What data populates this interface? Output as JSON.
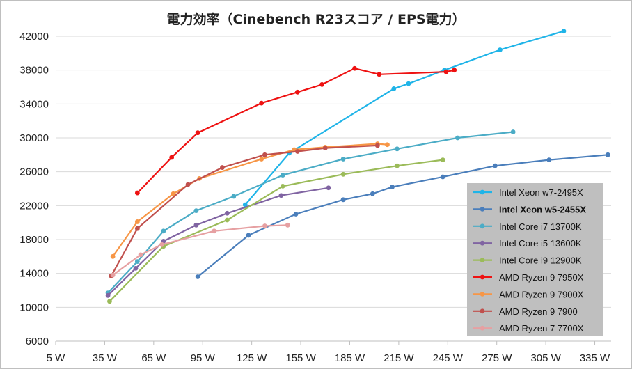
{
  "chart_data": {
    "type": "line",
    "title": "電力効率（Cinebench R23スコア / EPS電力）",
    "xlabel": "",
    "ylabel": "",
    "xlim": [
      5,
      345
    ],
    "ylim": [
      6000,
      42000
    ],
    "x_ticks": [
      5,
      35,
      65,
      95,
      125,
      155,
      185,
      215,
      245,
      275,
      305,
      335
    ],
    "x_tick_labels": [
      "5 W",
      "35 W",
      "65 W",
      "95 W",
      "125 W",
      "155 W",
      "185 W",
      "215 W",
      "245 W",
      "275 W",
      "305 W",
      "335 W"
    ],
    "y_ticks": [
      6000,
      10000,
      14000,
      18000,
      22000,
      26000,
      30000,
      34000,
      38000,
      42000
    ],
    "y_tick_labels": [
      "6000",
      "10000",
      "14000",
      "18000",
      "22000",
      "26000",
      "30000",
      "34000",
      "38000",
      "42000"
    ],
    "grid": "horizontal",
    "legend_position": "right",
    "series": [
      {
        "name": "Intel Xeon w7-2495X",
        "color": "#1fb4e8",
        "bold": false,
        "x": [
          121,
          148,
          212,
          221,
          243,
          277,
          316
        ],
        "y": [
          22100,
          28200,
          35800,
          36400,
          38000,
          40400,
          42600
        ]
      },
      {
        "name": "Intel Xeon w5-2455X",
        "color": "#4a7ebb",
        "bold": true,
        "x": [
          92,
          123,
          152,
          181,
          199,
          211,
          242,
          274,
          307,
          343
        ],
        "y": [
          13600,
          18500,
          21000,
          22700,
          23400,
          24200,
          25400,
          26700,
          27400,
          28000
        ]
      },
      {
        "name": "Intel Core i7 13700K",
        "color": "#4bacc6",
        "bold": false,
        "x": [
          37,
          55,
          71,
          91,
          114,
          144,
          181,
          214,
          251,
          285
        ],
        "y": [
          11700,
          15400,
          19000,
          21400,
          23100,
          25600,
          27500,
          28700,
          30000,
          30700
        ]
      },
      {
        "name": "Intel Core i5 13600K",
        "color": "#8064a2",
        "bold": false,
        "x": [
          37,
          54,
          71,
          91,
          110,
          143,
          172
        ],
        "y": [
          11400,
          14600,
          17800,
          19700,
          21100,
          23200,
          24100
        ]
      },
      {
        "name": "Intel Core i9 12900K",
        "color": "#9bbb59",
        "bold": false,
        "x": [
          38,
          71,
          110,
          144,
          181,
          214,
          242
        ],
        "y": [
          10700,
          17200,
          20300,
          24300,
          25700,
          26700,
          27400
        ]
      },
      {
        "name": "AMD Ryzen 9 7950X",
        "color": "#ee1111",
        "bold": false,
        "x": [
          55,
          76,
          92,
          131,
          153,
          168,
          188,
          203,
          244,
          249
        ],
        "y": [
          23500,
          27700,
          30600,
          34100,
          35400,
          36300,
          38200,
          37500,
          37800,
          38000
        ]
      },
      {
        "name": "AMD Ryzen 9 7900X",
        "color": "#f79646",
        "bold": false,
        "x": [
          40,
          55,
          77,
          93,
          131,
          151,
          170,
          202,
          208
        ],
        "y": [
          16000,
          20100,
          23400,
          25200,
          27500,
          28600,
          28900,
          29300,
          29200
        ]
      },
      {
        "name": "AMD Ryzen 9 7900",
        "color": "#c0504d",
        "bold": false,
        "x": [
          39,
          55,
          86,
          107,
          133,
          153,
          170,
          202
        ],
        "y": [
          13700,
          19300,
          24500,
          26500,
          28000,
          28400,
          28800,
          29100
        ]
      },
      {
        "name": "AMD Ryzen 7 7700X",
        "color": "#e6a0a2",
        "bold": false,
        "x": [
          40,
          57,
          70,
          102,
          133,
          147
        ],
        "y": [
          13800,
          16200,
          17400,
          19000,
          19600,
          19700
        ]
      }
    ]
  }
}
